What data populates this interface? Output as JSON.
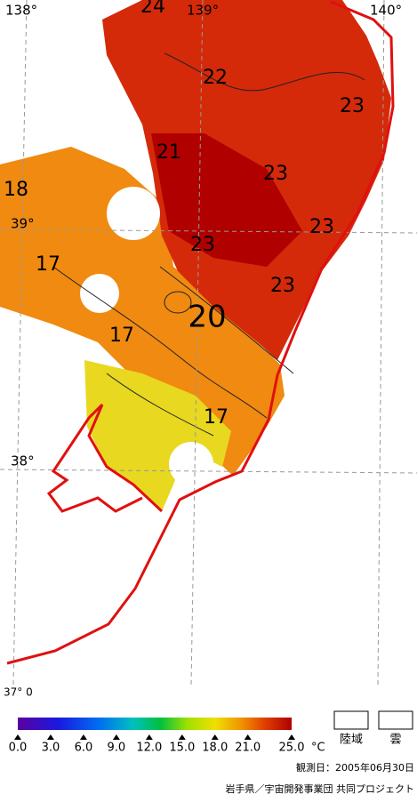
{
  "map": {
    "lon_labels": [
      "138°",
      "139°",
      "140°"
    ],
    "lat_labels": [
      "39°",
      "38°",
      "37° 0"
    ],
    "contour_labels": [
      "24",
      "22",
      "23",
      "21",
      "23",
      "18",
      "23",
      "23",
      "17",
      "23",
      "20",
      "17",
      "17"
    ],
    "colorbar": {
      "min": 0,
      "max": 25,
      "unit": "°C",
      "ticks": [
        {
          "value": 0,
          "label": "0.0"
        },
        {
          "value": 3,
          "label": "3.0"
        },
        {
          "value": 6,
          "label": "6.0"
        },
        {
          "value": 9,
          "label": "9.0"
        },
        {
          "value": 12,
          "label": "12.0"
        },
        {
          "value": 15,
          "label": "15.0"
        },
        {
          "value": 18,
          "label": "18.0"
        },
        {
          "value": 21,
          "label": "21.0"
        },
        {
          "value": 25,
          "label": "25.0"
        }
      ]
    },
    "legend": [
      "陸域",
      "雲"
    ],
    "footer": {
      "date": "観測日：2005年06月30日",
      "credit": "岩手県／宇宙開発事業団 共同プロジェクト"
    }
  }
}
